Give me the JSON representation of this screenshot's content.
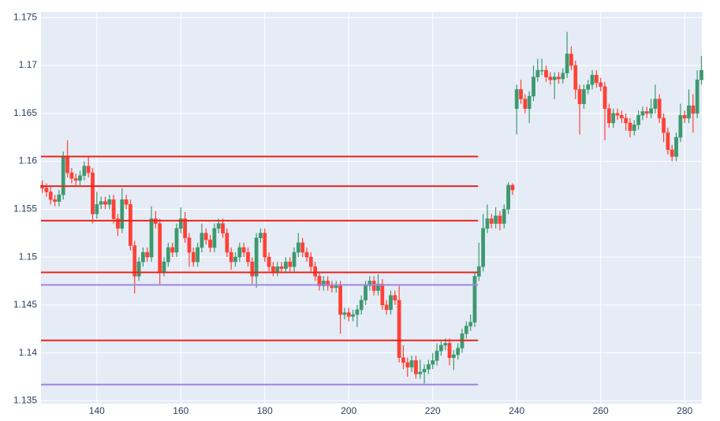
{
  "chart_data": {
    "type": "candlestick",
    "increasing_color": "#3d9970",
    "decreasing_color": "#ff4136",
    "background": "#e5ecf6",
    "grid": true,
    "xlim": [
      126.7,
      284.1
    ],
    "ylim": [
      1.1347,
      1.1756
    ],
    "xticks": [
      140,
      160,
      180,
      200,
      220,
      240,
      260,
      280
    ],
    "yticks": [
      1.135,
      1.14,
      1.145,
      1.15,
      1.155,
      1.16,
      1.165,
      1.17,
      1.175
    ],
    "x": [
      127,
      128,
      129,
      130,
      131,
      132,
      133,
      134,
      135,
      136,
      137,
      138,
      139,
      140,
      141,
      142,
      143,
      144,
      145,
      146,
      147,
      148,
      149,
      150,
      151,
      152,
      153,
      154,
      155,
      156,
      157,
      158,
      159,
      160,
      161,
      162,
      163,
      164,
      165,
      166,
      167,
      168,
      169,
      170,
      171,
      172,
      173,
      174,
      175,
      176,
      177,
      178,
      179,
      180,
      181,
      182,
      183,
      184,
      185,
      186,
      187,
      188,
      189,
      190,
      191,
      192,
      193,
      194,
      195,
      196,
      197,
      198,
      199,
      200,
      201,
      202,
      203,
      204,
      205,
      206,
      207,
      208,
      209,
      210,
      211,
      212,
      213,
      214,
      215,
      216,
      217,
      218,
      219,
      220,
      221,
      222,
      223,
      224,
      225,
      226,
      227,
      228,
      229,
      230,
      231,
      232,
      233,
      234,
      235,
      236,
      237,
      238,
      239,
      240,
      241,
      242,
      243,
      244,
      245,
      246,
      247,
      248,
      249,
      250,
      251,
      252,
      253,
      254,
      255,
      256,
      257,
      258,
      259,
      260,
      261,
      262,
      263,
      264,
      265,
      266,
      267,
      268,
      269,
      270,
      271,
      272,
      273,
      274,
      275,
      276,
      277,
      278,
      279,
      280,
      281,
      282,
      283,
      284
    ],
    "open": [
      1.1575,
      1.1572,
      1.1568,
      1.156,
      1.1558,
      1.1565,
      1.1605,
      1.1588,
      1.1582,
      1.158,
      1.1585,
      1.1595,
      1.1588,
      1.1545,
      1.1555,
      1.1558,
      1.1555,
      1.156,
      1.154,
      1.153,
      1.156,
      1.1555,
      1.1512,
      1.148,
      1.1495,
      1.1505,
      1.15,
      1.154,
      1.1535,
      1.1485,
      1.1495,
      1.151,
      1.1505,
      1.153,
      1.154,
      1.152,
      1.1505,
      1.1495,
      1.151,
      1.1525,
      1.1518,
      1.151,
      1.153,
      1.1535,
      1.1525,
      1.1505,
      1.1495,
      1.15,
      1.151,
      1.1505,
      1.1495,
      1.148,
      1.152,
      1.1525,
      1.15,
      1.149,
      1.1485,
      1.149,
      1.1488,
      1.1495,
      1.149,
      1.1505,
      1.1515,
      1.1505,
      1.15,
      1.149,
      1.148,
      1.147,
      1.1475,
      1.147,
      1.1468,
      1.147,
      1.144,
      1.1442,
      1.1438,
      1.144,
      1.1445,
      1.1455,
      1.147,
      1.1475,
      1.1465,
      1.1472,
      1.145,
      1.1445,
      1.146,
      1.1455,
      1.1395,
      1.139,
      1.1385,
      1.1392,
      1.1378,
      1.138,
      1.1383,
      1.1388,
      1.1392,
      1.1402,
      1.1408,
      1.141,
      1.1395,
      1.1398,
      1.1405,
      1.142,
      1.1428,
      1.1432,
      1.148,
      1.149,
      1.153,
      1.154,
      1.1535,
      1.1543,
      1.1535,
      1.155,
      1.1575,
      1.1655,
      1.1675,
      1.1665,
      1.1655,
      1.1668,
      1.1688,
      1.1695,
      1.1695,
      1.1688,
      1.1685,
      1.1688,
      1.1686,
      1.1692,
      1.1712,
      1.17,
      1.1675,
      1.166,
      1.1675,
      1.168,
      1.169,
      1.1682,
      1.1678,
      1.1655,
      1.164,
      1.165,
      1.1648,
      1.1645,
      1.164,
      1.1632,
      1.1638,
      1.1648,
      1.1652,
      1.165,
      1.1655,
      1.1665,
      1.1645,
      1.163,
      1.1612,
      1.1605,
      1.1625,
      1.1648,
      1.1645,
      1.1658,
      1.165,
      1.1685
    ],
    "high": [
      1.158,
      1.1577,
      1.1573,
      1.1565,
      1.157,
      1.161,
      1.1622,
      1.1593,
      1.1587,
      1.159,
      1.16,
      1.1605,
      1.1593,
      1.1568,
      1.1563,
      1.1563,
      1.1565,
      1.1565,
      1.1545,
      1.1572,
      1.1565,
      1.156,
      1.1517,
      1.15,
      1.151,
      1.151,
      1.1553,
      1.1548,
      1.154,
      1.15,
      1.1515,
      1.1515,
      1.1535,
      1.1552,
      1.1547,
      1.1525,
      1.151,
      1.1515,
      1.1535,
      1.153,
      1.1523,
      1.1535,
      1.154,
      1.154,
      1.153,
      1.151,
      1.1505,
      1.1515,
      1.1515,
      1.151,
      1.15,
      1.1525,
      1.153,
      1.153,
      1.1505,
      1.1495,
      1.1495,
      1.1495,
      1.15,
      1.15,
      1.151,
      1.1525,
      1.152,
      1.151,
      1.1505,
      1.1495,
      1.1485,
      1.148,
      1.148,
      1.1475,
      1.1475,
      1.1475,
      1.1447,
      1.1447,
      1.1445,
      1.145,
      1.146,
      1.1475,
      1.148,
      1.148,
      1.1482,
      1.1477,
      1.1455,
      1.1465,
      1.1465,
      1.147,
      1.1408,
      1.1395,
      1.1397,
      1.1397,
      1.1393,
      1.1388,
      1.1393,
      1.14,
      1.141,
      1.1413,
      1.1415,
      1.1415,
      1.1403,
      1.141,
      1.1425,
      1.1433,
      1.144,
      1.1485,
      1.1515,
      1.1545,
      1.1555,
      1.1545,
      1.1552,
      1.1548,
      1.1555,
      1.1578,
      1.1577,
      1.168,
      1.1685,
      1.167,
      1.1673,
      1.17,
      1.1707,
      1.1707,
      1.17,
      1.1693,
      1.1693,
      1.1693,
      1.1697,
      1.1735,
      1.172,
      1.1705,
      1.168,
      1.168,
      1.1685,
      1.1695,
      1.1695,
      1.1687,
      1.1683,
      1.166,
      1.1655,
      1.1655,
      1.1653,
      1.165,
      1.1645,
      1.1643,
      1.1653,
      1.1657,
      1.1657,
      1.1665,
      1.168,
      1.167,
      1.165,
      1.1635,
      1.1617,
      1.163,
      1.166,
      1.1653,
      1.1675,
      1.167,
      1.1695,
      1.171
    ],
    "low": [
      1.1567,
      1.1563,
      1.1555,
      1.1553,
      1.1553,
      1.156,
      1.1583,
      1.1577,
      1.1575,
      1.1575,
      1.158,
      1.1583,
      1.1535,
      1.154,
      1.155,
      1.155,
      1.155,
      1.1535,
      1.1522,
      1.1525,
      1.155,
      1.1507,
      1.1462,
      1.1475,
      1.149,
      1.1495,
      1.1495,
      1.153,
      1.1472,
      1.148,
      1.149,
      1.15,
      1.15,
      1.1525,
      1.1515,
      1.149,
      1.149,
      1.149,
      1.1505,
      1.1513,
      1.1505,
      1.1505,
      1.1525,
      1.152,
      1.15,
      1.1487,
      1.149,
      1.1495,
      1.15,
      1.149,
      1.1472,
      1.1468,
      1.1515,
      1.1495,
      1.1485,
      1.148,
      1.148,
      1.1483,
      1.1483,
      1.1485,
      1.1485,
      1.15,
      1.15,
      1.1495,
      1.1485,
      1.1475,
      1.1465,
      1.1465,
      1.1465,
      1.1463,
      1.1463,
      1.142,
      1.1435,
      1.1433,
      1.1433,
      1.1427,
      1.144,
      1.145,
      1.1465,
      1.146,
      1.146,
      1.1445,
      1.144,
      1.144,
      1.145,
      1.139,
      1.1383,
      1.1375,
      1.138,
      1.1373,
      1.1373,
      1.1368,
      1.1378,
      1.1383,
      1.1387,
      1.1397,
      1.1403,
      1.1387,
      1.1382,
      1.1393,
      1.14,
      1.1415,
      1.1423,
      1.1427,
      1.1475,
      1.1485,
      1.1525,
      1.153,
      1.153,
      1.1528,
      1.153,
      1.1545,
      1.1565,
      1.1628,
      1.166,
      1.165,
      1.164,
      1.1663,
      1.1683,
      1.169,
      1.1683,
      1.168,
      1.1665,
      1.1681,
      1.1681,
      1.1687,
      1.1695,
      1.1665,
      1.1628,
      1.1655,
      1.167,
      1.1675,
      1.1677,
      1.1673,
      1.1622,
      1.1635,
      1.1635,
      1.1643,
      1.164,
      1.1632,
      1.1625,
      1.1627,
      1.1633,
      1.1643,
      1.1645,
      1.1645,
      1.165,
      1.164,
      1.162,
      1.1607,
      1.16,
      1.16,
      1.162,
      1.164,
      1.164,
      1.163,
      1.1645,
      1.168
    ],
    "close": [
      1.1572,
      1.1568,
      1.156,
      1.1558,
      1.1565,
      1.1605,
      1.1588,
      1.1582,
      1.158,
      1.1585,
      1.1595,
      1.1588,
      1.1545,
      1.1555,
      1.1558,
      1.1555,
      1.156,
      1.154,
      1.153,
      1.156,
      1.1555,
      1.1512,
      1.148,
      1.1495,
      1.1505,
      1.15,
      1.154,
      1.1535,
      1.1485,
      1.1495,
      1.151,
      1.1505,
      1.153,
      1.154,
      1.152,
      1.1505,
      1.1495,
      1.151,
      1.1525,
      1.1518,
      1.151,
      1.153,
      1.1535,
      1.1525,
      1.1505,
      1.1495,
      1.15,
      1.151,
      1.1505,
      1.1495,
      1.148,
      1.152,
      1.1525,
      1.15,
      1.149,
      1.1485,
      1.149,
      1.1488,
      1.1495,
      1.149,
      1.1505,
      1.1515,
      1.1505,
      1.15,
      1.149,
      1.148,
      1.147,
      1.1475,
      1.147,
      1.1468,
      1.147,
      1.144,
      1.1442,
      1.1438,
      1.144,
      1.1445,
      1.1455,
      1.147,
      1.1475,
      1.1465,
      1.1472,
      1.145,
      1.1445,
      1.146,
      1.1455,
      1.1395,
      1.139,
      1.1385,
      1.1392,
      1.1378,
      1.138,
      1.1383,
      1.1388,
      1.1392,
      1.1402,
      1.1408,
      1.141,
      1.1395,
      1.1398,
      1.1405,
      1.142,
      1.1428,
      1.1432,
      1.148,
      1.149,
      1.153,
      1.154,
      1.1535,
      1.1543,
      1.1535,
      1.155,
      1.1575,
      1.157,
      1.1675,
      1.1665,
      1.1655,
      1.1668,
      1.1688,
      1.1695,
      1.1695,
      1.1688,
      1.1685,
      1.1688,
      1.1686,
      1.1692,
      1.1712,
      1.17,
      1.1675,
      1.166,
      1.1675,
      1.168,
      1.169,
      1.1682,
      1.1678,
      1.1655,
      1.164,
      1.165,
      1.1648,
      1.1645,
      1.164,
      1.1632,
      1.1638,
      1.1648,
      1.1652,
      1.165,
      1.1655,
      1.1665,
      1.1645,
      1.163,
      1.1612,
      1.1605,
      1.1625,
      1.1648,
      1.1645,
      1.1658,
      1.165,
      1.1685,
      1.1695
    ],
    "lines": [
      {
        "y": 1.1605,
        "x": [
          126.7,
          230.8
        ],
        "color": "#e8251e"
      },
      {
        "y": 1.1574,
        "x": [
          126.7,
          230.8
        ],
        "color": "#e8251e"
      },
      {
        "y": 1.1538,
        "x": [
          126.7,
          230.8
        ],
        "color": "#e8251e"
      },
      {
        "y": 1.1484,
        "x": [
          126.7,
          230.8
        ],
        "color": "#e8251e"
      },
      {
        "y": 1.1413,
        "x": [
          126.7,
          230.8
        ],
        "color": "#e8251e"
      },
      {
        "y": 1.1471,
        "x": [
          126.7,
          230.8
        ],
        "color": "#9d86e6"
      },
      {
        "y": 1.1367,
        "x": [
          126.7,
          230.8
        ],
        "color": "#9d86e6"
      }
    ]
  }
}
